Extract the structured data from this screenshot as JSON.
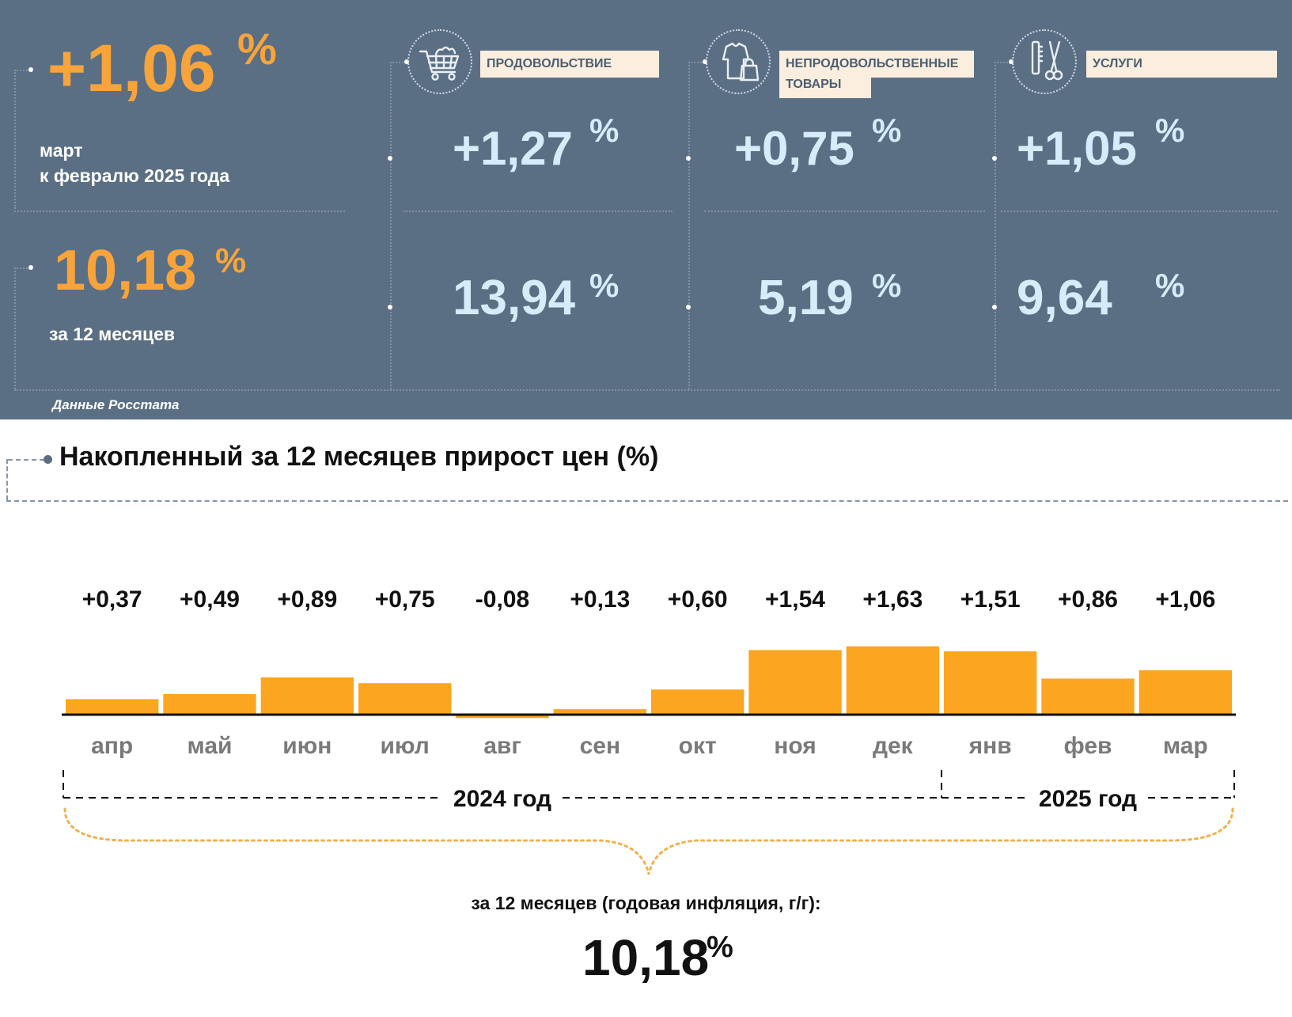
{
  "header": {
    "monthly_value": "+1,06",
    "monthly_pct": "%",
    "monthly_caption_line1": "март",
    "monthly_caption_line2": "к февралю 2025 года",
    "annual_value": "10,18",
    "annual_pct": "%",
    "annual_caption": "за 12 месяцев",
    "source": "Данные Росстата"
  },
  "categories": [
    {
      "label": "ПРОДОВОЛЬСТВИЕ",
      "icon": "shopping-cart-icon",
      "monthly": "+1,27",
      "annual": "13,94",
      "pct": "%"
    },
    {
      "label": "НЕПРОДОВОЛЬСТВЕННЫЕ ТОВАРЫ",
      "label_line1": "НЕПРОДОВОЛЬСТВЕННЫЕ",
      "label_line2": "ТОВАРЫ",
      "icon": "clothes-bag-icon",
      "monthly": "+0,75",
      "annual": "5,19",
      "pct": "%"
    },
    {
      "label": "УСЛУГИ",
      "icon": "scissors-comb-icon",
      "monthly": "+1,05",
      "annual": "9,64",
      "pct": "%"
    }
  ],
  "chart_data": {
    "type": "bar",
    "title": "Накопленный за 12 месяцев прирост цен (%)",
    "categories": [
      "апр",
      "май",
      "июн",
      "июл",
      "авг",
      "сен",
      "окт",
      "ноя",
      "дек",
      "янв",
      "фев",
      "мар"
    ],
    "values": [
      0.37,
      0.49,
      0.89,
      0.75,
      -0.08,
      0.13,
      0.6,
      1.54,
      1.63,
      1.51,
      0.86,
      1.06
    ],
    "value_labels": [
      "+0,37",
      "+0,49",
      "+0,89",
      "+0,75",
      "-0,08",
      "+0,13",
      "+0,60",
      "+1,54",
      "+1,63",
      "+1,51",
      "+0,86",
      "+1,06"
    ],
    "year_groups": [
      {
        "label": "2024 год",
        "months": 9
      },
      {
        "label": "2025 год",
        "months": 3
      }
    ],
    "bar_color": "#fca520",
    "grid": false,
    "summary_caption": "за 12 месяцев (годовая инфляция, г/г):",
    "summary_value": "10,18",
    "summary_pct": "%"
  }
}
